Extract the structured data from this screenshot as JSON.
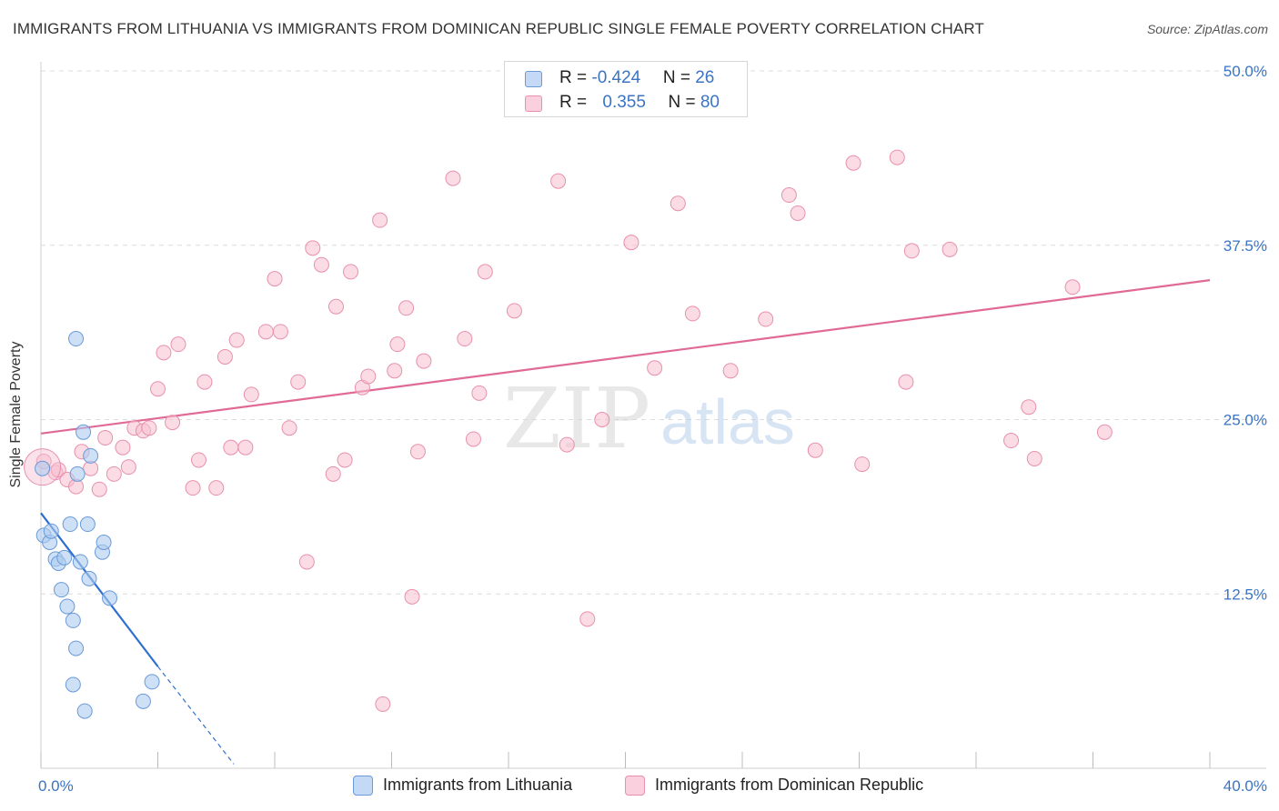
{
  "title": "IMMIGRANTS FROM LITHUANIA VS IMMIGRANTS FROM DOMINICAN REPUBLIC SINGLE FEMALE POVERTY CORRELATION CHART",
  "source": "Source: ZipAtlas.com",
  "watermark": {
    "zip": "ZIP",
    "atlas": "atlas"
  },
  "legend": {
    "rows": [
      {
        "r_label": "R = ",
        "r_value": "-0.424",
        "n_label": "N = ",
        "n_value": "26"
      },
      {
        "r_label": "R = ",
        "r_value": "0.355",
        "n_label": "N = ",
        "n_value": "80"
      }
    ]
  },
  "colors": {
    "lithuania_fill": "#aecbf0",
    "lithuania_stroke": "#6a9ad8",
    "lithuania_line": "#2f6fcf",
    "dominican_fill": "#f7bfd0",
    "dominican_stroke": "#e890ad",
    "dominican_line": "#e06a95",
    "axis_label": "#3a74c4",
    "grid": "#dcdcdc"
  },
  "chart_data": {
    "type": "scatter",
    "title": "IMMIGRANTS FROM LITHUANIA VS IMMIGRANTS FROM DOMINICAN REPUBLIC SINGLE FEMALE POVERTY CORRELATION CHART",
    "xlabel": "",
    "ylabel": "Single Female Poverty",
    "xlim": [
      0,
      40
    ],
    "ylim": [
      0,
      50
    ],
    "x_tick_labels": [
      "0.0%",
      "40.0%"
    ],
    "y_ticks": [
      12.5,
      25.0,
      37.5,
      50.0
    ],
    "y_tick_labels": [
      "12.5%",
      "25.0%",
      "37.5%",
      "50.0%"
    ],
    "grid": true,
    "legend_position": "bottom",
    "series": [
      {
        "name": "Immigrants from Lithuania",
        "color": "#aecbf0",
        "points": [
          [
            0.05,
            21.5
          ],
          [
            0.1,
            16.7
          ],
          [
            0.3,
            16.2
          ],
          [
            0.35,
            17.0
          ],
          [
            0.5,
            15.0
          ],
          [
            0.6,
            14.7
          ],
          [
            0.7,
            12.8
          ],
          [
            0.8,
            15.1
          ],
          [
            0.9,
            11.6
          ],
          [
            1.0,
            17.5
          ],
          [
            1.1,
            10.6
          ],
          [
            1.1,
            6.0
          ],
          [
            1.2,
            8.6
          ],
          [
            1.2,
            30.8
          ],
          [
            1.25,
            21.1
          ],
          [
            1.35,
            14.8
          ],
          [
            1.45,
            24.1
          ],
          [
            1.5,
            4.1
          ],
          [
            1.6,
            17.5
          ],
          [
            1.65,
            13.6
          ],
          [
            1.7,
            22.4
          ],
          [
            2.1,
            15.5
          ],
          [
            2.15,
            16.2
          ],
          [
            2.35,
            12.2
          ],
          [
            3.5,
            4.8
          ],
          [
            3.8,
            6.2
          ]
        ],
        "trend": {
          "x": [
            0,
            4
          ],
          "y": [
            18.3,
            7.3
          ],
          "dashed_extension_to": [
            6.6,
            0.3
          ]
        }
      },
      {
        "name": "Immigrants from Dominican Republic",
        "color": "#f7bfd0",
        "points": [
          [
            0.1,
            22.0
          ],
          [
            0.5,
            21.2
          ],
          [
            0.6,
            21.4
          ],
          [
            0.9,
            20.7
          ],
          [
            1.2,
            20.2
          ],
          [
            1.4,
            22.7
          ],
          [
            1.7,
            21.5
          ],
          [
            2.0,
            20.0
          ],
          [
            2.2,
            23.7
          ],
          [
            2.5,
            21.1
          ],
          [
            2.8,
            23.0
          ],
          [
            3.0,
            21.6
          ],
          [
            3.2,
            24.4
          ],
          [
            3.5,
            24.2
          ],
          [
            3.7,
            24.4
          ],
          [
            4.0,
            27.2
          ],
          [
            4.2,
            29.8
          ],
          [
            4.7,
            30.4
          ],
          [
            4.5,
            24.8
          ],
          [
            5.2,
            20.1
          ],
          [
            5.4,
            22.1
          ],
          [
            5.6,
            27.7
          ],
          [
            6.0,
            20.1
          ],
          [
            6.3,
            29.5
          ],
          [
            6.5,
            23.0
          ],
          [
            6.7,
            30.7
          ],
          [
            7.0,
            23.0
          ],
          [
            7.2,
            26.8
          ],
          [
            7.7,
            31.3
          ],
          [
            8.0,
            35.1
          ],
          [
            8.2,
            31.3
          ],
          [
            8.5,
            24.4
          ],
          [
            8.8,
            27.7
          ],
          [
            9.1,
            14.8
          ],
          [
            9.3,
            37.3
          ],
          [
            9.6,
            36.1
          ],
          [
            10.0,
            21.1
          ],
          [
            10.1,
            33.1
          ],
          [
            10.4,
            22.1
          ],
          [
            10.6,
            35.6
          ],
          [
            11.0,
            27.3
          ],
          [
            11.2,
            28.1
          ],
          [
            11.6,
            39.3
          ],
          [
            11.7,
            4.6
          ],
          [
            12.1,
            28.5
          ],
          [
            12.2,
            30.4
          ],
          [
            12.5,
            33.0
          ],
          [
            12.7,
            12.3
          ],
          [
            12.9,
            22.7
          ],
          [
            13.1,
            29.2
          ],
          [
            14.1,
            42.3
          ],
          [
            14.5,
            30.8
          ],
          [
            14.8,
            23.6
          ],
          [
            15.0,
            26.9
          ],
          [
            15.2,
            35.6
          ],
          [
            16.2,
            32.8
          ],
          [
            17.7,
            42.1
          ],
          [
            18.0,
            23.2
          ],
          [
            18.7,
            10.7
          ],
          [
            19.2,
            25.0
          ],
          [
            20.2,
            37.7
          ],
          [
            21.0,
            28.7
          ],
          [
            21.8,
            40.5
          ],
          [
            22.3,
            32.6
          ],
          [
            23.6,
            28.5
          ],
          [
            24.8,
            32.2
          ],
          [
            25.6,
            41.1
          ],
          [
            25.9,
            39.8
          ],
          [
            26.5,
            22.8
          ],
          [
            27.8,
            43.4
          ],
          [
            28.1,
            21.8
          ],
          [
            29.3,
            43.8
          ],
          [
            29.6,
            27.7
          ],
          [
            29.8,
            37.1
          ],
          [
            31.1,
            37.2
          ],
          [
            33.2,
            23.5
          ],
          [
            33.8,
            25.9
          ],
          [
            34.0,
            22.2
          ],
          [
            35.3,
            34.5
          ],
          [
            36.4,
            24.1
          ]
        ],
        "trend": {
          "x": [
            0,
            40
          ],
          "y": [
            24.0,
            35.0
          ]
        }
      }
    ]
  },
  "bottom_legend": [
    {
      "label": "Immigrants from Lithuania"
    },
    {
      "label": "Immigrants from Dominican Republic"
    }
  ]
}
